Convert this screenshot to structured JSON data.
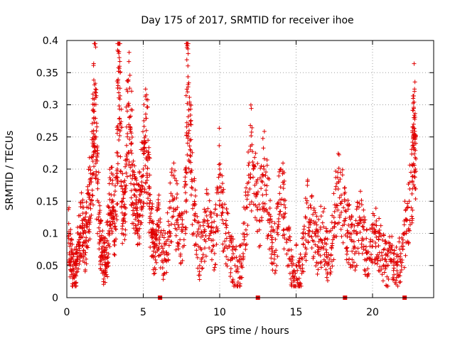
{
  "chart_data": {
    "type": "scatter",
    "title": "Day 175 of 2017, SRMTID for receiver ihoe",
    "xlabel": "GPS time / hours",
    "ylabel": "SRMTID / TECUs",
    "xlim": [
      0,
      24
    ],
    "ylim": [
      0,
      0.4
    ],
    "xticks": [
      0,
      5,
      10,
      15,
      20
    ],
    "xtick_labels": [
      "0",
      "5",
      "10",
      "15",
      "20"
    ],
    "yticks": [
      0,
      0.05,
      0.1,
      0.15,
      0.2,
      0.25,
      0.3,
      0.35,
      0.4
    ],
    "ytick_labels": [
      "0",
      "0.05",
      "0.1",
      "0.15",
      "0.2",
      "0.25",
      "0.3",
      "0.35",
      "0.4"
    ],
    "grid": true,
    "marker": "plus",
    "color": "#e00000",
    "series": [
      {
        "name": "SRMTID",
        "points": [
          [
            0.1,
            0.095
          ],
          [
            0.2,
            0.08
          ],
          [
            0.3,
            0.06
          ],
          [
            0.4,
            0.045
          ],
          [
            0.5,
            0.035
          ],
          [
            0.6,
            0.05
          ],
          [
            0.7,
            0.07
          ],
          [
            0.8,
            0.09
          ],
          [
            0.9,
            0.11
          ],
          [
            1.0,
            0.12
          ],
          [
            1.1,
            0.1
          ],
          [
            1.2,
            0.085
          ],
          [
            1.3,
            0.11
          ],
          [
            1.4,
            0.14
          ],
          [
            1.5,
            0.16
          ],
          [
            1.6,
            0.18
          ],
          [
            1.7,
            0.22
          ],
          [
            1.75,
            0.26
          ],
          [
            1.8,
            0.3
          ],
          [
            1.85,
            0.32
          ],
          [
            1.9,
            0.25
          ],
          [
            2.0,
            0.18
          ],
          [
            2.1,
            0.13
          ],
          [
            2.2,
            0.09
          ],
          [
            2.3,
            0.07
          ],
          [
            2.4,
            0.06
          ],
          [
            2.5,
            0.055
          ],
          [
            2.6,
            0.07
          ],
          [
            2.7,
            0.1
          ],
          [
            2.8,
            0.13
          ],
          [
            2.9,
            0.16
          ],
          [
            3.0,
            0.14
          ],
          [
            3.1,
            0.11
          ],
          [
            3.2,
            0.13
          ],
          [
            3.3,
            0.2
          ],
          [
            3.35,
            0.33
          ],
          [
            3.4,
            0.38
          ],
          [
            3.45,
            0.36
          ],
          [
            3.5,
            0.27
          ],
          [
            3.6,
            0.15
          ],
          [
            3.7,
            0.12
          ],
          [
            3.8,
            0.14
          ],
          [
            3.9,
            0.22
          ],
          [
            4.0,
            0.3
          ],
          [
            4.1,
            0.28
          ],
          [
            4.2,
            0.24
          ],
          [
            4.3,
            0.19
          ],
          [
            4.4,
            0.16
          ],
          [
            4.5,
            0.14
          ],
          [
            4.6,
            0.13
          ],
          [
            4.7,
            0.12
          ],
          [
            4.8,
            0.16
          ],
          [
            4.9,
            0.18
          ],
          [
            5.0,
            0.2
          ],
          [
            5.1,
            0.24
          ],
          [
            5.2,
            0.26
          ],
          [
            5.3,
            0.22
          ],
          [
            5.4,
            0.16
          ],
          [
            5.5,
            0.12
          ],
          [
            5.6,
            0.1
          ],
          [
            5.7,
            0.08
          ],
          [
            5.8,
            0.07
          ],
          [
            5.9,
            0.09
          ],
          [
            6.0,
            0.11
          ],
          [
            6.2,
            0.08
          ],
          [
            6.4,
            0.06
          ],
          [
            6.6,
            0.09
          ],
          [
            6.8,
            0.14
          ],
          [
            7.0,
            0.19
          ],
          [
            7.2,
            0.12
          ],
          [
            7.4,
            0.09
          ],
          [
            7.6,
            0.11
          ],
          [
            7.8,
            0.15
          ],
          [
            7.85,
            0.37
          ],
          [
            7.9,
            0.32
          ],
          [
            8.0,
            0.26
          ],
          [
            8.1,
            0.22
          ],
          [
            8.2,
            0.17
          ],
          [
            8.4,
            0.12
          ],
          [
            8.6,
            0.08
          ],
          [
            8.8,
            0.06
          ],
          [
            9.0,
            0.09
          ],
          [
            9.2,
            0.12
          ],
          [
            9.4,
            0.1
          ],
          [
            9.6,
            0.08
          ],
          [
            9.8,
            0.11
          ],
          [
            10.0,
            0.2
          ],
          [
            10.2,
            0.14
          ],
          [
            10.4,
            0.1
          ],
          [
            10.6,
            0.08
          ],
          [
            10.8,
            0.06
          ],
          [
            11.0,
            0.05
          ],
          [
            11.2,
            0.04
          ],
          [
            11.4,
            0.06
          ],
          [
            11.6,
            0.09
          ],
          [
            11.8,
            0.14
          ],
          [
            12.0,
            0.23
          ],
          [
            12.2,
            0.2
          ],
          [
            12.4,
            0.16
          ],
          [
            12.6,
            0.12
          ],
          [
            12.8,
            0.18
          ],
          [
            13.0,
            0.19
          ],
          [
            13.2,
            0.13
          ],
          [
            13.4,
            0.09
          ],
          [
            13.6,
            0.07
          ],
          [
            13.8,
            0.11
          ],
          [
            14.0,
            0.2
          ],
          [
            14.2,
            0.13
          ],
          [
            14.4,
            0.09
          ],
          [
            14.6,
            0.06
          ],
          [
            14.8,
            0.04
          ],
          [
            15.0,
            0.05
          ],
          [
            15.2,
            0.03
          ],
          [
            15.4,
            0.06
          ],
          [
            15.6,
            0.1
          ],
          [
            15.8,
            0.14
          ],
          [
            16.0,
            0.12
          ],
          [
            16.2,
            0.1
          ],
          [
            16.4,
            0.08
          ],
          [
            16.6,
            0.09
          ],
          [
            16.8,
            0.11
          ],
          [
            17.0,
            0.07
          ],
          [
            17.2,
            0.06
          ],
          [
            17.4,
            0.09
          ],
          [
            17.6,
            0.14
          ],
          [
            17.8,
            0.18
          ],
          [
            18.0,
            0.15
          ],
          [
            18.2,
            0.12
          ],
          [
            18.4,
            0.1
          ],
          [
            18.6,
            0.09
          ],
          [
            18.8,
            0.08
          ],
          [
            19.0,
            0.1
          ],
          [
            19.2,
            0.12
          ],
          [
            19.4,
            0.09
          ],
          [
            19.6,
            0.07
          ],
          [
            19.8,
            0.06
          ],
          [
            20.0,
            0.08
          ],
          [
            20.2,
            0.1
          ],
          [
            20.4,
            0.09
          ],
          [
            20.6,
            0.07
          ],
          [
            20.8,
            0.06
          ],
          [
            21.0,
            0.05
          ],
          [
            21.2,
            0.07
          ],
          [
            21.4,
            0.06
          ],
          [
            21.6,
            0.05
          ],
          [
            21.8,
            0.06
          ],
          [
            22.0,
            0.08
          ],
          [
            22.2,
            0.12
          ],
          [
            22.4,
            0.15
          ],
          [
            22.6,
            0.18
          ],
          [
            22.65,
            0.25
          ],
          [
            22.7,
            0.28
          ],
          [
            22.75,
            0.24
          ],
          [
            22.8,
            0.2
          ]
        ]
      }
    ],
    "gap_markers_x": [
      6.1,
      12.5,
      18.2,
      22.1
    ],
    "scatter_density_note": "dense scatter concentrated between 0.03 and 0.2"
  }
}
